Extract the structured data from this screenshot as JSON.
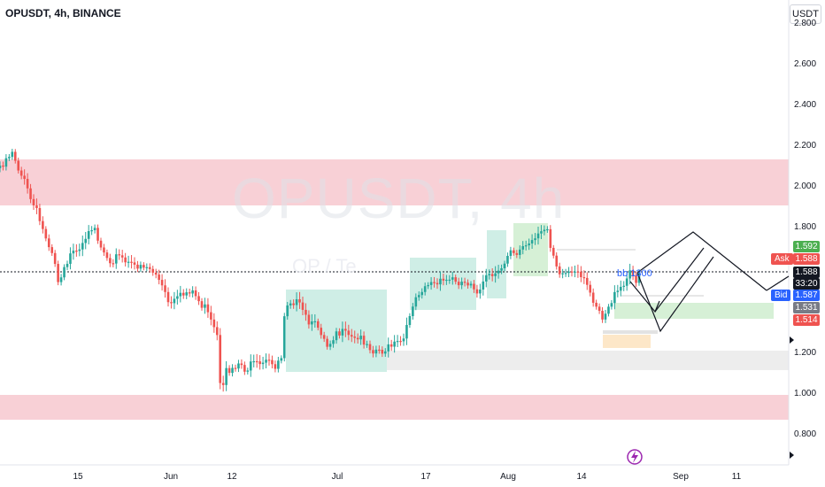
{
  "header": {
    "symbol_title": "OPUSDT, 4h, BINANCE",
    "currency_button": "USDT"
  },
  "watermark": {
    "main": "OPUSDT, 4h",
    "sub": "OP / Te"
  },
  "annotation": {
    "text": "bb 1300"
  },
  "y_axis": {
    "labels": [
      "2.800",
      "2.600",
      "2.400",
      "2.200",
      "2.000",
      "1.800",
      "1.200",
      "1.000",
      "0.800"
    ]
  },
  "x_axis": {
    "labels": [
      "15",
      "Jun",
      "12",
      "Jul",
      "17",
      "Aug",
      "14",
      "Sep",
      "11"
    ]
  },
  "price_tags": {
    "green_level": "1.592",
    "ask_label": "Ask",
    "ask_value": "1.588",
    "last_price": "1.588",
    "countdown": "33:20",
    "bid_label": "Bid",
    "bid_value": "1.587",
    "grey_level": "1.531",
    "red_level": "1.514"
  },
  "colors": {
    "up": "#26a69a",
    "down": "#ef5350",
    "supply_zone": "#f8d0d6",
    "teal_box": "#cfeee6",
    "green_box": "#d6f0d6",
    "orange_box": "#fde7c8",
    "grey_box": "#ededed"
  },
  "icons": {
    "lightning": "lightning-icon",
    "right_arrow": "right-arrow-icon"
  }
}
